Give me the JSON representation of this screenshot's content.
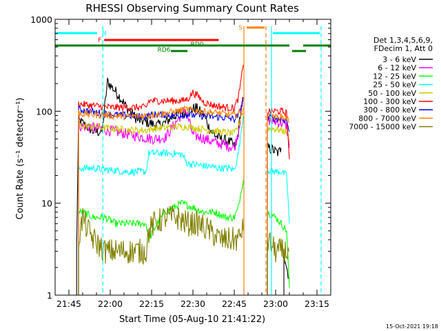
{
  "chart_data": {
    "type": "line",
    "title": "RHESSI Observing Summary Count Rates",
    "xlabel": "Start Time (05-Aug-10 21:41:22)",
    "ylabel": "Count Rate (s⁻¹ detector⁻¹)",
    "yscale": "log",
    "ylim": [
      1,
      1000
    ],
    "xlim_minutes_from_2140": [
      0,
      100
    ],
    "x_ticks": [
      {
        "min": 5,
        "label": "21:45"
      },
      {
        "min": 20,
        "label": "22:00"
      },
      {
        "min": 35,
        "label": "22:15"
      },
      {
        "min": 50,
        "label": "22:30"
      },
      {
        "min": 65,
        "label": "22:45"
      },
      {
        "min": 80,
        "label": "23:00"
      },
      {
        "min": 95,
        "label": "23:15"
      }
    ],
    "y_ticks": [
      {
        "value": 1,
        "label": "1"
      },
      {
        "value": 10,
        "label": "10"
      },
      {
        "value": 100,
        "label": "100"
      },
      {
        "value": 1000,
        "label": "1000"
      }
    ],
    "info_lines": [
      "Det 1,3,4,5,6,9,",
      "FDecim 1, Att 0"
    ],
    "timestamp": "15-Oct-2021 19:18",
    "series": [
      {
        "name": "3 - 6 keV",
        "color": "#000000",
        "points": [
          [
            7.8,
            3
          ],
          [
            8.5,
            80
          ],
          [
            14,
            60
          ],
          [
            17,
            60
          ],
          [
            19,
            210
          ],
          [
            23,
            150
          ],
          [
            26,
            110
          ],
          [
            30,
            80
          ],
          [
            34,
            75
          ],
          [
            37,
            70
          ],
          [
            40,
            75
          ],
          [
            42,
            85
          ],
          [
            45,
            95
          ],
          [
            48,
            100
          ],
          [
            51,
            110
          ],
          [
            54,
            90
          ],
          [
            56,
            65
          ],
          [
            58,
            55
          ],
          [
            60,
            50
          ],
          [
            62,
            48
          ],
          [
            64,
            45
          ],
          [
            65.5,
            40
          ],
          [
            66.5,
            60
          ],
          [
            67.5,
            110
          ],
          [
            68.3,
            140
          ],
          [
            71,
            null
          ],
          [
            77,
            40
          ],
          [
            79,
            38
          ],
          [
            81,
            35
          ],
          [
            82,
            40
          ],
          [
            82.5,
            null
          ],
          [
            83,
            3
          ],
          [
            84,
            2
          ],
          [
            85,
            1.5
          ]
        ]
      },
      {
        "name": "6 - 12 keV",
        "color": "#ff00ff",
        "points": [
          [
            8.5,
            70
          ],
          [
            16,
            65
          ],
          [
            22,
            60
          ],
          [
            28,
            55
          ],
          [
            32,
            52
          ],
          [
            36,
            50
          ],
          [
            40,
            52
          ],
          [
            43,
            70
          ],
          [
            45,
            85
          ],
          [
            47,
            110
          ],
          [
            48.5,
            80
          ],
          [
            50,
            55
          ],
          [
            53,
            52
          ],
          [
            56,
            48
          ],
          [
            60,
            44
          ],
          [
            63,
            42
          ],
          [
            65,
            40
          ],
          [
            66.5,
            60
          ],
          [
            67.5,
            100
          ],
          [
            68.3,
            140
          ],
          [
            71,
            null
          ],
          [
            77,
            80
          ],
          [
            82,
            75
          ],
          [
            84,
            70
          ],
          [
            85,
            40
          ]
        ]
      },
      {
        "name": "12 - 25 keV",
        "color": "#00ff00",
        "points": [
          [
            8.5,
            8
          ],
          [
            10,
            8
          ],
          [
            14,
            7
          ],
          [
            18,
            7
          ],
          [
            22,
            6
          ],
          [
            26,
            6
          ],
          [
            30,
            6
          ],
          [
            33,
            6
          ],
          [
            34,
            4
          ],
          [
            37,
            6
          ],
          [
            40,
            8
          ],
          [
            43,
            9
          ],
          [
            46,
            10
          ],
          [
            50,
            9
          ],
          [
            54,
            8
          ],
          [
            58,
            8
          ],
          [
            62,
            7
          ],
          [
            65,
            7
          ],
          [
            66.5,
            9
          ],
          [
            67.5,
            14
          ],
          [
            68.3,
            18
          ],
          [
            71,
            null
          ],
          [
            77,
            8
          ],
          [
            80,
            7
          ],
          [
            82,
            6
          ],
          [
            84,
            5
          ],
          [
            85,
            1.2
          ]
        ]
      },
      {
        "name": "25 - 50 keV",
        "color": "#00ffff",
        "points": [
          [
            8.5,
            24
          ],
          [
            14,
            24
          ],
          [
            20,
            23
          ],
          [
            26,
            22
          ],
          [
            30,
            22
          ],
          [
            33,
            22
          ],
          [
            34,
            35
          ],
          [
            40,
            35
          ],
          [
            46,
            34
          ],
          [
            48,
            27
          ],
          [
            52,
            26
          ],
          [
            56,
            25
          ],
          [
            60,
            24
          ],
          [
            63,
            24
          ],
          [
            65,
            23
          ],
          [
            66.5,
            35
          ],
          [
            67.5,
            60
          ],
          [
            68.3,
            90
          ],
          [
            71,
            null
          ],
          [
            77,
            23
          ],
          [
            80,
            22
          ],
          [
            82,
            22
          ],
          [
            84,
            20
          ],
          [
            85,
            6
          ]
        ]
      },
      {
        "name": "50 - 100 keV",
        "color": "#cccc00",
        "points": [
          [
            8.5,
            70
          ],
          [
            14,
            68
          ],
          [
            20,
            65
          ],
          [
            26,
            63
          ],
          [
            30,
            62
          ],
          [
            33,
            62
          ],
          [
            36,
            65
          ],
          [
            40,
            66
          ],
          [
            44,
            68
          ],
          [
            48,
            68
          ],
          [
            52,
            65
          ],
          [
            56,
            62
          ],
          [
            60,
            60
          ],
          [
            63,
            58
          ],
          [
            65,
            57
          ],
          [
            66.5,
            70
          ],
          [
            67.5,
            90
          ],
          [
            68.3,
            110
          ],
          [
            71,
            null
          ],
          [
            77,
            65
          ],
          [
            80,
            64
          ],
          [
            82,
            62
          ],
          [
            84,
            60
          ],
          [
            85,
            50
          ]
        ]
      },
      {
        "name": "100 - 300 keV",
        "color": "#ff0000",
        "points": [
          [
            8.5,
            120
          ],
          [
            14,
            115
          ],
          [
            20,
            110
          ],
          [
            26,
            110
          ],
          [
            30,
            110
          ],
          [
            33,
            110
          ],
          [
            34,
            130
          ],
          [
            40,
            130
          ],
          [
            46,
            130
          ],
          [
            48,
            135
          ],
          [
            50,
            160
          ],
          [
            52,
            145
          ],
          [
            54,
            125
          ],
          [
            58,
            115
          ],
          [
            62,
            110
          ],
          [
            65,
            108
          ],
          [
            66.5,
            140
          ],
          [
            67.5,
            220
          ],
          [
            68.3,
            320
          ],
          [
            71,
            null
          ],
          [
            77,
            100
          ],
          [
            80,
            100
          ],
          [
            82,
            100
          ],
          [
            84,
            95
          ],
          [
            85,
            30
          ]
        ]
      },
      {
        "name": "300 - 800 keV",
        "color": "#0000ff",
        "points": [
          [
            8.5,
            105
          ],
          [
            14,
            98
          ],
          [
            20,
            92
          ],
          [
            26,
            90
          ],
          [
            30,
            88
          ],
          [
            33,
            88
          ],
          [
            36,
            92
          ],
          [
            40,
            92
          ],
          [
            44,
            90
          ],
          [
            48,
            92
          ],
          [
            52,
            90
          ],
          [
            56,
            88
          ],
          [
            60,
            86
          ],
          [
            63,
            84
          ],
          [
            65,
            82
          ],
          [
            66.5,
            90
          ],
          [
            67.5,
            110
          ],
          [
            68.3,
            130
          ],
          [
            71,
            null
          ],
          [
            77,
            85
          ],
          [
            80,
            84
          ],
          [
            82,
            82
          ],
          [
            84,
            80
          ],
          [
            85,
            60
          ]
        ]
      },
      {
        "name": "800 - 7000 keV",
        "color": "#ff8000",
        "points": [
          [
            8.5,
            95
          ],
          [
            14,
            92
          ],
          [
            20,
            90
          ],
          [
            26,
            88
          ],
          [
            30,
            88
          ],
          [
            33,
            90
          ],
          [
            36,
            92
          ],
          [
            40,
            95
          ],
          [
            44,
            100
          ],
          [
            48,
            105
          ],
          [
            52,
            100
          ],
          [
            56,
            98
          ],
          [
            60,
            95
          ],
          [
            63,
            92
          ],
          [
            65,
            90
          ],
          [
            66.5,
            95
          ],
          [
            67.5,
            100
          ],
          [
            68.3,
            95
          ],
          [
            71,
            null
          ],
          [
            77,
            88
          ],
          [
            80,
            86
          ],
          [
            82,
            86
          ],
          [
            84,
            85
          ],
          [
            85,
            75
          ]
        ]
      },
      {
        "name": "7000 - 15000 keV",
        "color": "#808000",
        "points": [
          [
            8.5,
            4
          ],
          [
            10,
            7
          ],
          [
            12,
            5
          ],
          [
            14,
            4
          ],
          [
            18,
            3
          ],
          [
            22,
            3
          ],
          [
            26,
            3
          ],
          [
            30,
            3
          ],
          [
            33,
            3
          ],
          [
            34,
            5
          ],
          [
            36,
            6
          ],
          [
            40,
            7
          ],
          [
            44,
            7
          ],
          [
            48,
            6
          ],
          [
            52,
            6
          ],
          [
            56,
            5
          ],
          [
            60,
            4
          ],
          [
            63,
            4
          ],
          [
            65,
            4
          ],
          [
            66.5,
            4
          ],
          [
            67.5,
            5
          ],
          [
            68.3,
            5
          ],
          [
            71,
            null
          ],
          [
            77,
            4
          ],
          [
            80,
            3
          ],
          [
            82,
            3
          ],
          [
            84,
            3
          ],
          [
            85,
            3
          ]
        ]
      }
    ],
    "vertical_markers": [
      {
        "min": 17.3,
        "color": "#00ffff",
        "style": "dashed"
      },
      {
        "min": 68.5,
        "color": "#ff8000",
        "style": "solid"
      },
      {
        "min": 76.5,
        "color": "#ff8000",
        "style": "dashed"
      },
      {
        "min": 78.5,
        "color": "#00ffff",
        "style": "solid"
      },
      {
        "min": 96.5,
        "color": "#00ffff",
        "style": "dashed"
      }
    ],
    "flag_bars": [
      {
        "label": "N",
        "color": "#00ffff",
        "segments": [
          [
            0,
            15.2
          ],
          [
            79,
            96
          ]
        ],
        "level": 1
      },
      {
        "label": "S",
        "color": "#ff8000",
        "segments": [
          [
            69.5,
            76
          ]
        ],
        "level": 0
      },
      {
        "label": "F",
        "color": "#ff0000",
        "segments": [
          [
            17.8,
            59.3
          ]
        ],
        "level": 2
      },
      {
        "label": "RD0",
        "color": "#008000",
        "segments": [
          [
            0,
            85
          ],
          [
            90,
            100
          ]
        ],
        "level": 3
      },
      {
        "label": "RD6",
        "color": "#008000",
        "segments": [
          [
            42,
            48
          ],
          [
            86,
            91
          ]
        ],
        "level": 4
      }
    ]
  }
}
